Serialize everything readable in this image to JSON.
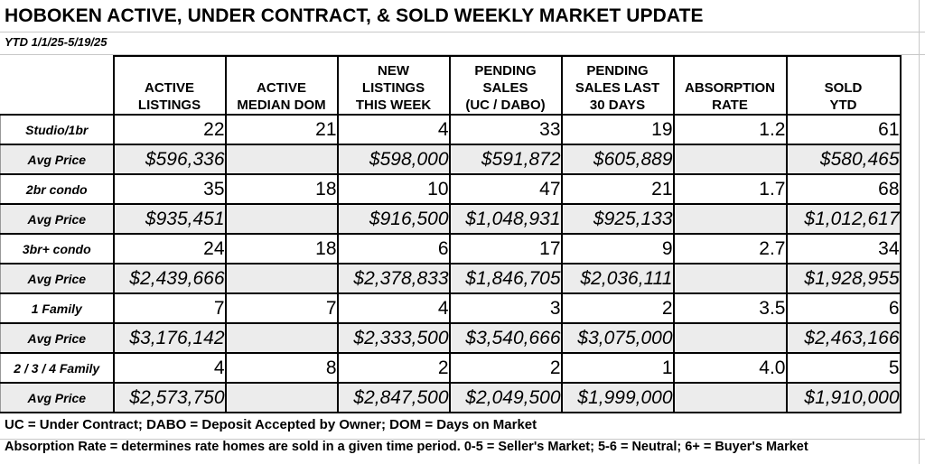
{
  "title": "HOBOKEN ACTIVE, UNDER CONTRACT, & SOLD WEEKLY MARKET UPDATE",
  "subtitle": "YTD 1/1/25-5/19/25",
  "headers": [
    [
      "ACTIVE",
      "LISTINGS"
    ],
    [
      "ACTIVE",
      "MEDIAN DOM"
    ],
    [
      "NEW",
      "LISTINGS",
      "THIS WEEK"
    ],
    [
      "PENDING",
      "SALES",
      "(UC / DABO)"
    ],
    [
      "PENDING",
      "SALES LAST",
      "30 DAYS"
    ],
    [
      "ABSORPTION",
      "RATE"
    ],
    [
      "SOLD",
      "YTD"
    ]
  ],
  "rows": [
    {
      "label": "Studio/1br",
      "counts": [
        "22",
        "21",
        "4",
        "33",
        "19",
        "1.2",
        "61"
      ],
      "price_label": "Avg Price",
      "prices": [
        "$596,336",
        "",
        "$598,000",
        "$591,872",
        "$605,889",
        "",
        "$580,465"
      ]
    },
    {
      "label": "2br condo",
      "counts": [
        "35",
        "18",
        "10",
        "47",
        "21",
        "1.7",
        "68"
      ],
      "price_label": "Avg Price",
      "prices": [
        "$935,451",
        "",
        "$916,500",
        "$1,048,931",
        "$925,133",
        "",
        "$1,012,617"
      ]
    },
    {
      "label": "3br+ condo",
      "counts": [
        "24",
        "18",
        "6",
        "17",
        "9",
        "2.7",
        "34"
      ],
      "price_label": "Avg Price",
      "prices": [
        "$2,439,666",
        "",
        "$2,378,833",
        "$1,846,705",
        "$2,036,111",
        "",
        "$1,928,955"
      ]
    },
    {
      "label": "1 Family",
      "counts": [
        "7",
        "7",
        "4",
        "3",
        "2",
        "3.5",
        "6"
      ],
      "price_label": "Avg Price",
      "prices": [
        "$3,176,142",
        "",
        "$2,333,500",
        "$3,540,666",
        "$3,075,000",
        "",
        "$2,463,166"
      ]
    },
    {
      "label": "2 / 3 / 4 Family",
      "counts": [
        "4",
        "8",
        "2",
        "2",
        "1",
        "4.0",
        "5"
      ],
      "price_label": "Avg Price",
      "prices": [
        "$2,573,750",
        "",
        "$2,847,500",
        "$2,049,500",
        "$1,999,000",
        "",
        "$1,910,000"
      ]
    }
  ],
  "footnotes": [
    "UC = Under Contract; DABO = Deposit Accepted by Owner; DOM = Days on Market",
    "Absorption Rate = determines rate homes are sold in a given time period.  0-5 = Seller's Market; 5-6 = Neutral; 6+ = Buyer's Market"
  ]
}
